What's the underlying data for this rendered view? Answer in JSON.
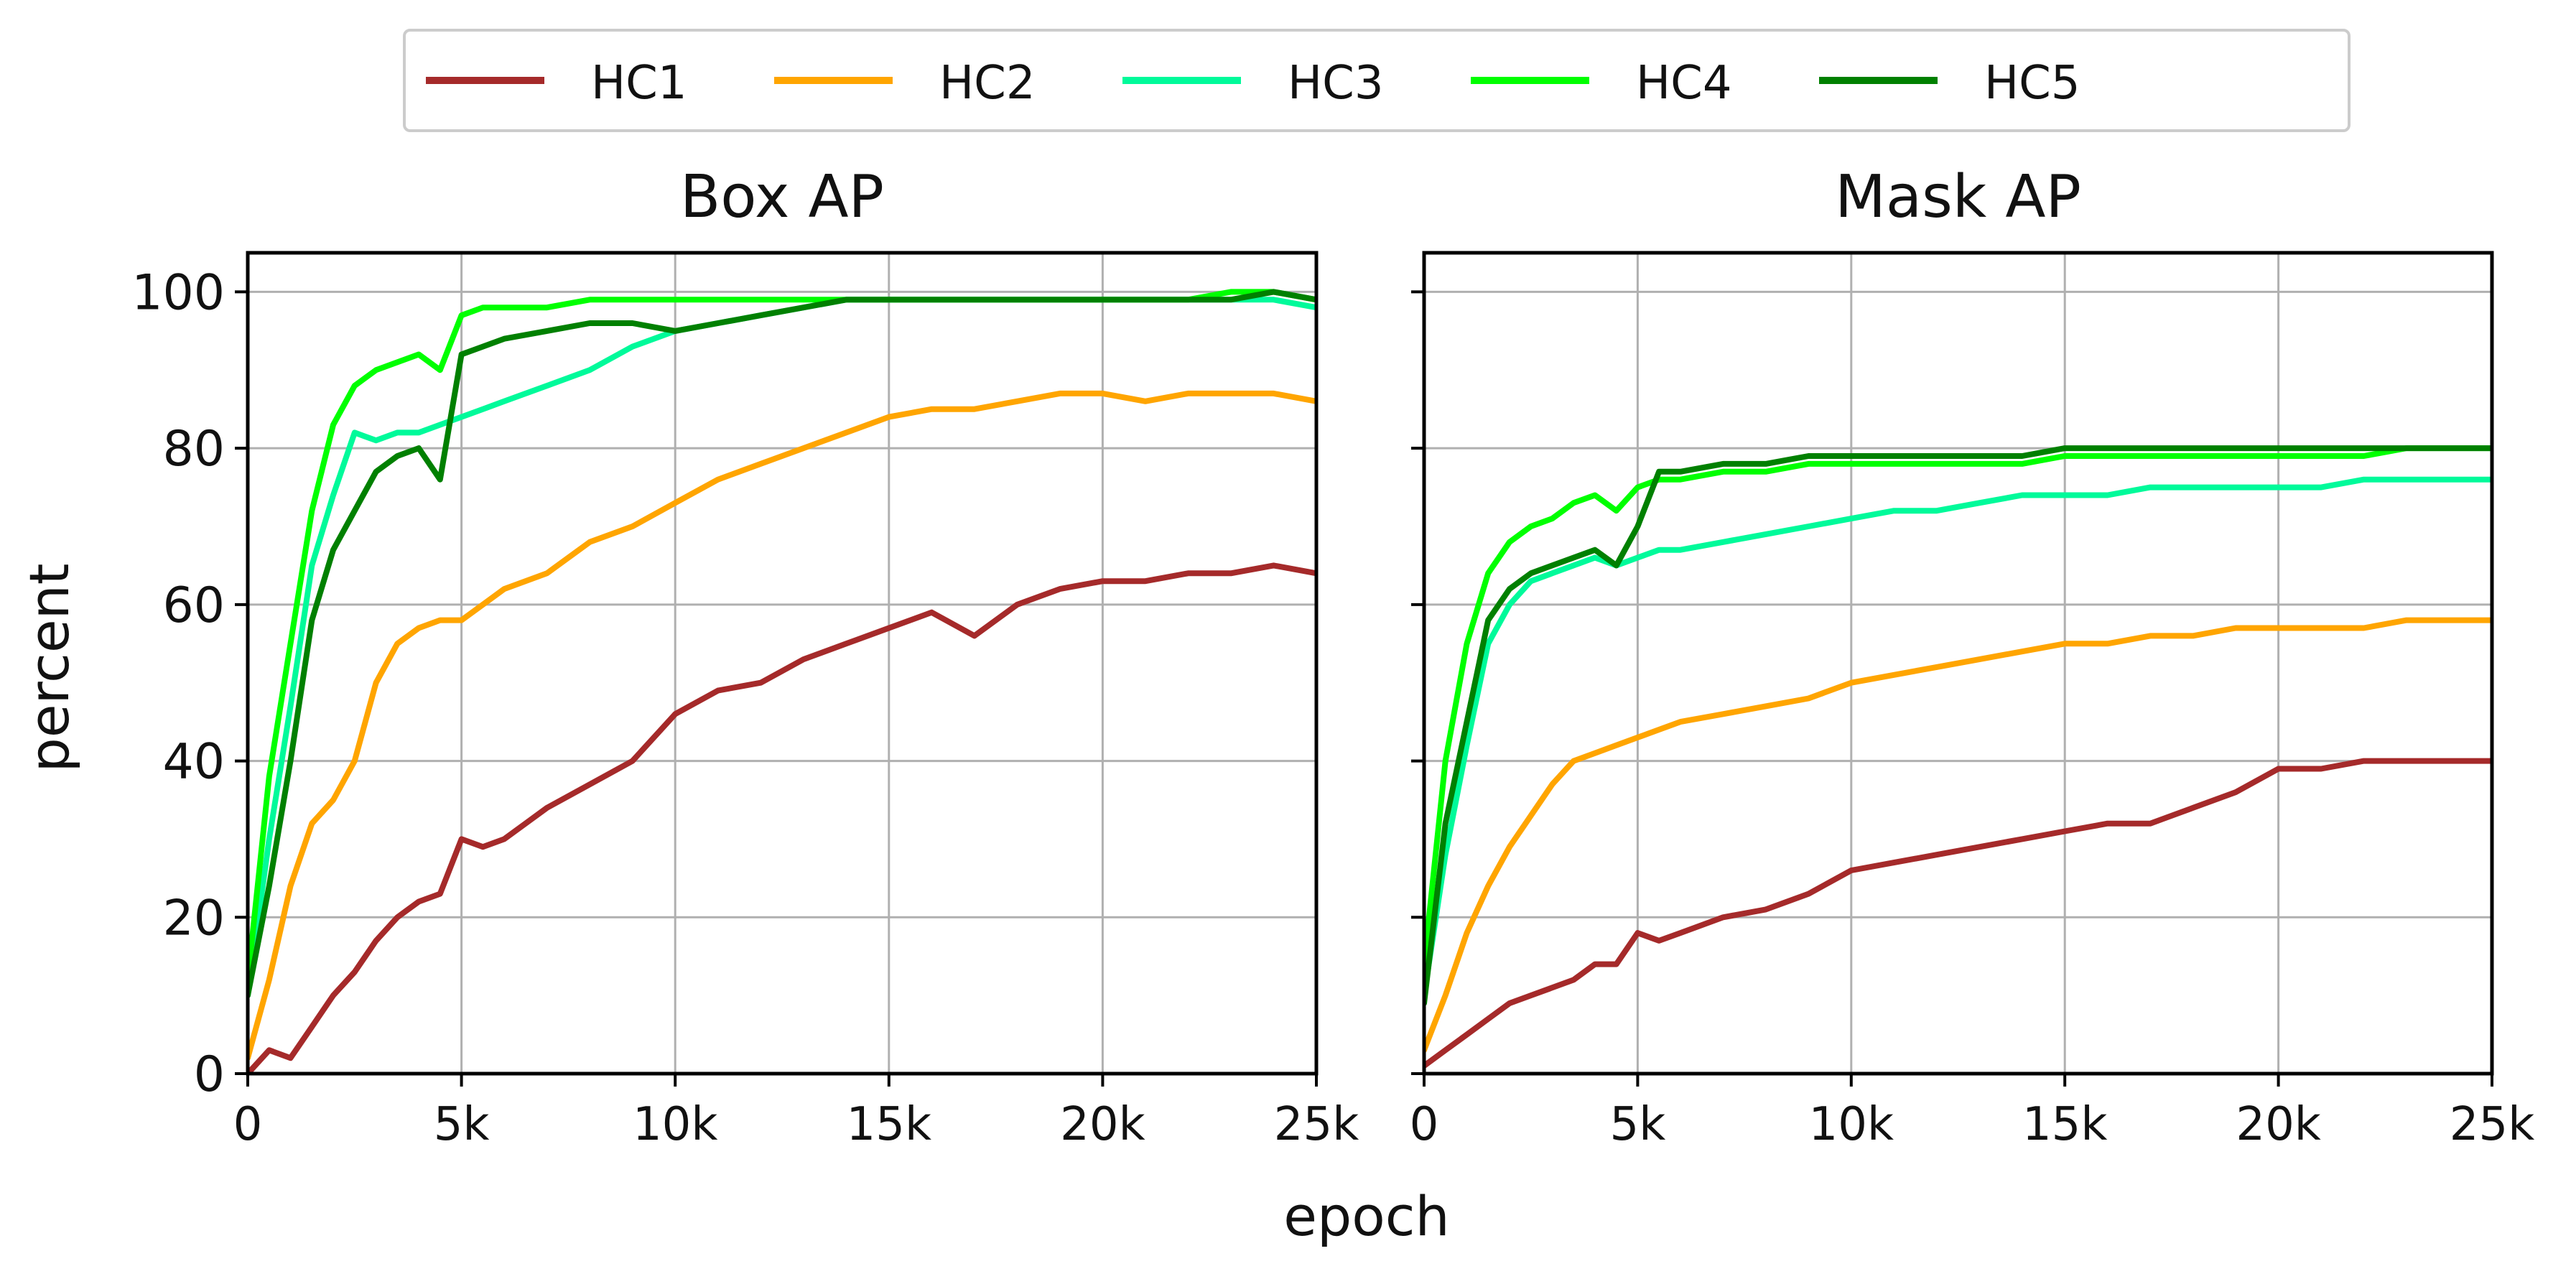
{
  "chart_data": {
    "type": "line",
    "xlabel": "epoch",
    "ylabel": "percent",
    "x_tick_labels": [
      "0",
      "5k",
      "10k",
      "15k",
      "20k",
      "25k"
    ],
    "y_tick_labels": [
      "0",
      "20",
      "40",
      "60",
      "80",
      "100"
    ],
    "xlim": [
      0,
      25000
    ],
    "ylim": [
      0,
      105
    ],
    "grid": true,
    "legend_position": "top-center, above panels",
    "legend": [
      {
        "name": "HC1",
        "color": "#a52a2a"
      },
      {
        "name": "HC2",
        "color": "#ffa500"
      },
      {
        "name": "HC3",
        "color": "#00fa9a"
      },
      {
        "name": "HC4",
        "color": "#00ff00"
      },
      {
        "name": "HC5",
        "color": "#008000"
      }
    ],
    "x": [
      0,
      500,
      1000,
      1500,
      2000,
      2500,
      3000,
      3500,
      4000,
      4500,
      5000,
      5500,
      6000,
      7000,
      8000,
      9000,
      10000,
      11000,
      12000,
      13000,
      14000,
      15000,
      16000,
      17000,
      18000,
      19000,
      20000,
      21000,
      22000,
      23000,
      24000,
      25000
    ],
    "panels": [
      {
        "title": "Box AP",
        "series": [
          {
            "name": "HC1",
            "values": [
              0,
              3,
              2,
              6,
              10,
              13,
              17,
              20,
              22,
              23,
              30,
              29,
              30,
              34,
              37,
              40,
              46,
              49,
              50,
              53,
              55,
              57,
              59,
              56,
              60,
              62,
              63,
              63,
              64,
              64,
              65,
              64
            ]
          },
          {
            "name": "HC2",
            "values": [
              2,
              12,
              24,
              32,
              35,
              40,
              50,
              55,
              57,
              58,
              58,
              60,
              62,
              64,
              68,
              70,
              73,
              76,
              78,
              80,
              82,
              84,
              85,
              85,
              86,
              87,
              87,
              86,
              87,
              87,
              87,
              86
            ]
          },
          {
            "name": "HC3",
            "values": [
              10,
              30,
              47,
              65,
              74,
              82,
              81,
              82,
              82,
              83,
              84,
              85,
              86,
              88,
              90,
              93,
              95,
              96,
              97,
              98,
              99,
              99,
              99,
              99,
              99,
              99,
              99,
              99,
              99,
              99,
              99,
              98
            ]
          },
          {
            "name": "HC4",
            "values": [
              12,
              38,
              55,
              72,
              83,
              88,
              90,
              91,
              92,
              90,
              97,
              98,
              98,
              98,
              99,
              99,
              99,
              99,
              99,
              99,
              99,
              99,
              99,
              99,
              99,
              99,
              99,
              99,
              99,
              100,
              100,
              99
            ]
          },
          {
            "name": "HC5",
            "values": [
              10,
              24,
              40,
              58,
              67,
              72,
              77,
              79,
              80,
              76,
              92,
              93,
              94,
              95,
              96,
              96,
              95,
              96,
              97,
              98,
              99,
              99,
              99,
              99,
              99,
              99,
              99,
              99,
              99,
              99,
              100,
              99
            ]
          }
        ]
      },
      {
        "title": "Mask AP",
        "series": [
          {
            "name": "HC1",
            "values": [
              1,
              3,
              5,
              7,
              9,
              10,
              11,
              12,
              14,
              14,
              18,
              17,
              18,
              20,
              21,
              23,
              26,
              27,
              28,
              29,
              30,
              31,
              32,
              32,
              34,
              36,
              39,
              39,
              40,
              40,
              40,
              40
            ]
          },
          {
            "name": "HC2",
            "values": [
              3,
              10,
              18,
              24,
              29,
              33,
              37,
              40,
              41,
              42,
              43,
              44,
              45,
              46,
              47,
              48,
              50,
              51,
              52,
              53,
              54,
              55,
              55,
              56,
              56,
              57,
              57,
              57,
              57,
              58,
              58,
              58
            ]
          },
          {
            "name": "HC3",
            "values": [
              10,
              28,
              42,
              55,
              60,
              63,
              64,
              65,
              66,
              65,
              66,
              67,
              67,
              68,
              69,
              70,
              71,
              72,
              72,
              73,
              74,
              74,
              74,
              75,
              75,
              75,
              75,
              75,
              76,
              76,
              76,
              76
            ]
          },
          {
            "name": "HC4",
            "values": [
              14,
              40,
              55,
              64,
              68,
              70,
              71,
              73,
              74,
              72,
              75,
              76,
              76,
              77,
              77,
              78,
              78,
              78,
              78,
              78,
              78,
              79,
              79,
              79,
              79,
              79,
              79,
              79,
              79,
              80,
              80,
              80
            ]
          },
          {
            "name": "HC5",
            "values": [
              9,
              32,
              45,
              58,
              62,
              64,
              65,
              66,
              67,
              65,
              70,
              77,
              77,
              78,
              78,
              79,
              79,
              79,
              79,
              79,
              79,
              80,
              80,
              80,
              80,
              80,
              80,
              80,
              80,
              80,
              80,
              80
            ]
          }
        ]
      }
    ]
  }
}
